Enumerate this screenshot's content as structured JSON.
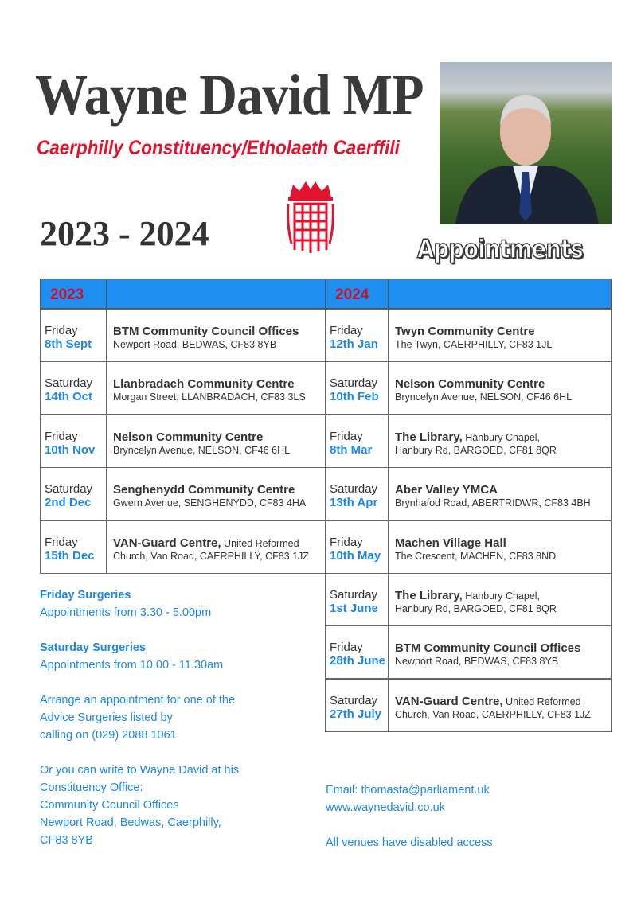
{
  "header": {
    "title": "Wayne David MP",
    "subtitle": "Caerphilly Constituency/Etholaeth Caerffili",
    "years": "2023 - 2024",
    "appointments": "Appointments"
  },
  "colors": {
    "accent_blue": "#1e8ff0",
    "text_blue": "#1e88e5",
    "red": "#e3122d"
  },
  "icons": {
    "logo": "portcullis-icon",
    "photo": "mp-portrait"
  },
  "table_2023": {
    "year": "2023",
    "rows": [
      {
        "day": "Friday",
        "date": "8th Sept",
        "venue": "BTM Community Council Offices",
        "venue_suffix": "",
        "address": "Newport Road, BEDWAS, CF83 8YB"
      },
      {
        "day": "Saturday",
        "date": "14th Oct",
        "venue": "Llanbradach Community Centre",
        "venue_suffix": "",
        "address": "Morgan Street, LLANBRADACH, CF83 3LS"
      },
      {
        "day": "Friday",
        "date": "10th Nov",
        "venue": "Nelson Community Centre",
        "venue_suffix": "",
        "address": "Bryncelyn Avenue, NELSON, CF46 6HL"
      },
      {
        "day": "Saturday",
        "date": "2nd Dec",
        "venue": "Senghenydd Community Centre",
        "venue_suffix": "",
        "address": "Gwern Avenue, SENGHENYDD, CF83 4HA"
      },
      {
        "day": "Friday",
        "date": "15th Dec",
        "venue": "VAN-Guard Centre,",
        "venue_suffix": " United Reformed",
        "address": "Church, Van Road, CAERPHILLY, CF83 1JZ"
      }
    ]
  },
  "table_2024": {
    "year": "2024",
    "rows": [
      {
        "day": "Friday",
        "date": "12th Jan",
        "venue": "Twyn Community Centre",
        "venue_suffix": "",
        "address": "The Twyn, CAERPHILLY, CF83 1JL"
      },
      {
        "day": "Saturday",
        "date": "10th Feb",
        "venue": "Nelson Community Centre",
        "venue_suffix": "",
        "address": "Bryncelyn Avenue, NELSON, CF46 6HL"
      },
      {
        "day": "Friday",
        "date": "8th Mar",
        "venue": "The Library,",
        "venue_suffix": " Hanbury Chapel,",
        "address": "Hanbury Rd, BARGOED, CF81 8QR"
      },
      {
        "day": "Saturday",
        "date": "13th Apr",
        "venue": "Aber Valley YMCA",
        "venue_suffix": "",
        "address": "Brynhafod Road, ABERTRIDWR, CF83 4BH"
      },
      {
        "day": "Friday",
        "date": "10th May",
        "venue": "Machen Village Hall",
        "venue_suffix": "",
        "address": "The Crescent, MACHEN, CF83 8ND"
      },
      {
        "day": "Saturday",
        "date": "1st June",
        "venue": "The Library,",
        "venue_suffix": " Hanbury Chapel,",
        "address": "Hanbury Rd, BARGOED, CF81 8QR"
      },
      {
        "day": "Friday",
        "date": "28th June",
        "venue": "BTM Community Council Offices",
        "venue_suffix": "",
        "address": "Newport Road, BEDWAS, CF83 8YB"
      },
      {
        "day": "Saturday",
        "date": "27th July",
        "venue": "VAN-Guard Centre,",
        "venue_suffix": " United Reformed",
        "address": "Church, Van Road, CAERPHILLY, CF83 1JZ"
      }
    ]
  },
  "info": {
    "friday_title": "Friday Surgeries",
    "friday_time": "Appointments from 3.30 - 5.00pm",
    "saturday_title": "Saturday Surgeries",
    "saturday_time": "Appointments from 10.00 - 11.30am",
    "arrange": [
      "Arrange an appointment for one of the",
      "Advice Surgeries listed by",
      "calling on (029) 2088 1061"
    ],
    "write": [
      "Or you can write to Wayne David at his",
      "Constituency Office:",
      "Community Council Offices",
      "Newport Road, Bedwas, Caerphilly,",
      "CF83 8YB"
    ],
    "email": "Email: thomasta@parliament.uk",
    "website": "www.waynedavid.co.uk",
    "access": "All venues have disabled access"
  }
}
